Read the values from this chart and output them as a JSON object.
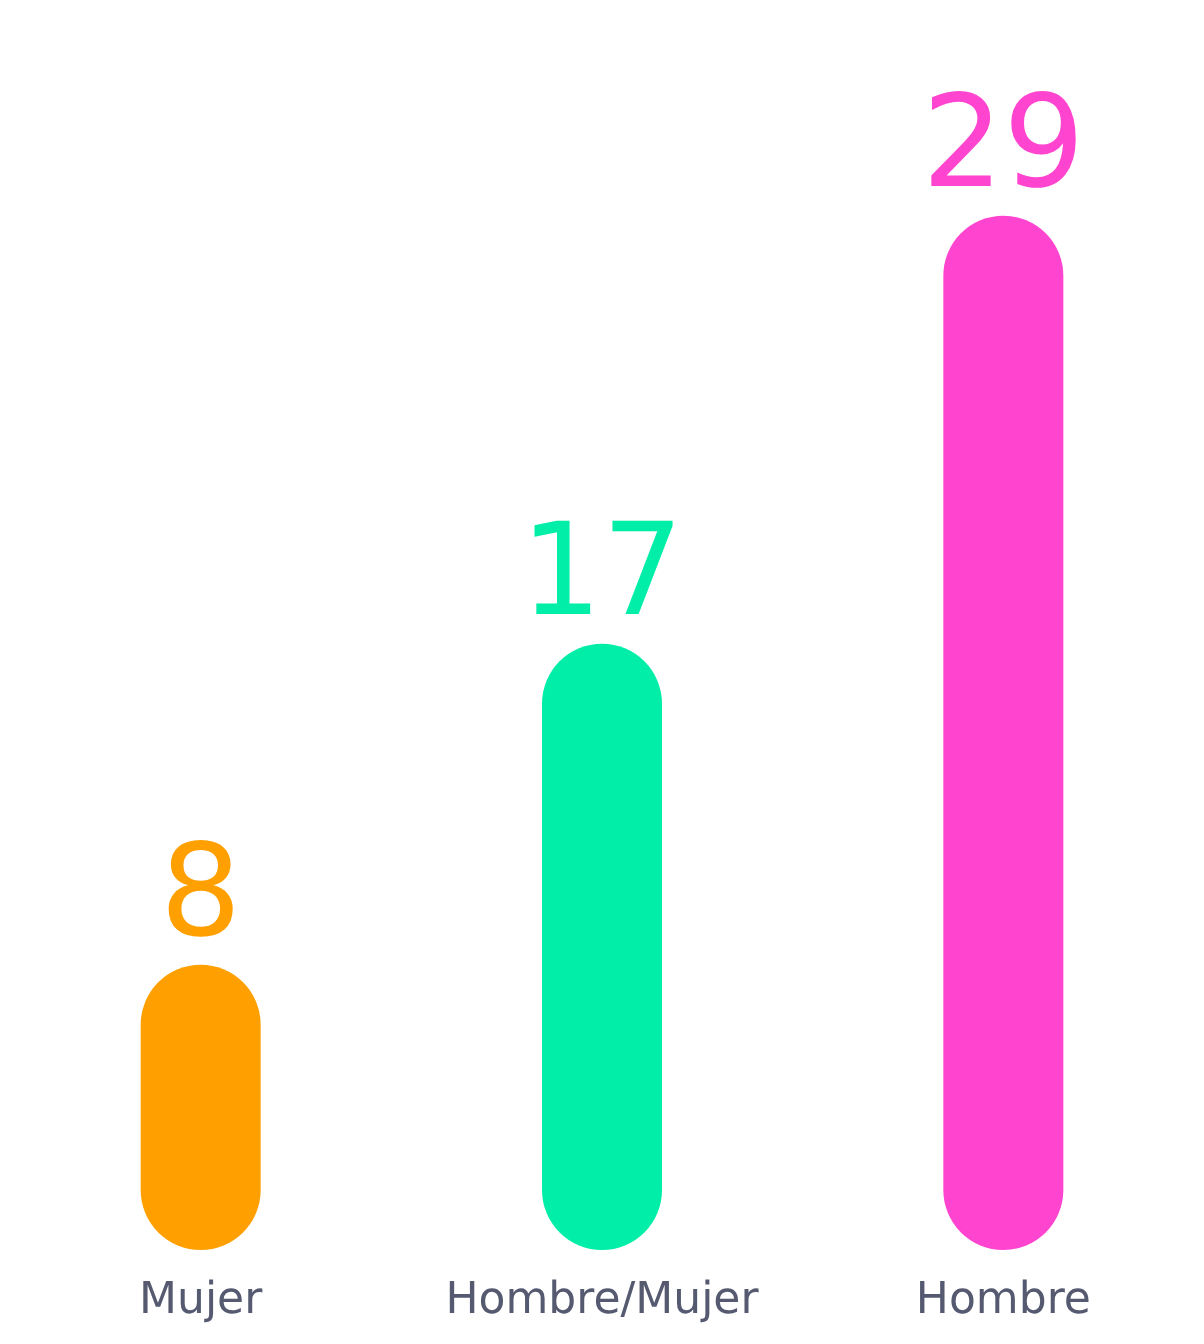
{
  "chart_data": {
    "type": "bar",
    "categories": [
      "Mujer",
      "Hombre/Mujer",
      "Hombre"
    ],
    "values": [
      8,
      17,
      29
    ],
    "colors": [
      "#ffa000",
      "#00eea8",
      "#ff44d0"
    ],
    "data_labels": true
  }
}
